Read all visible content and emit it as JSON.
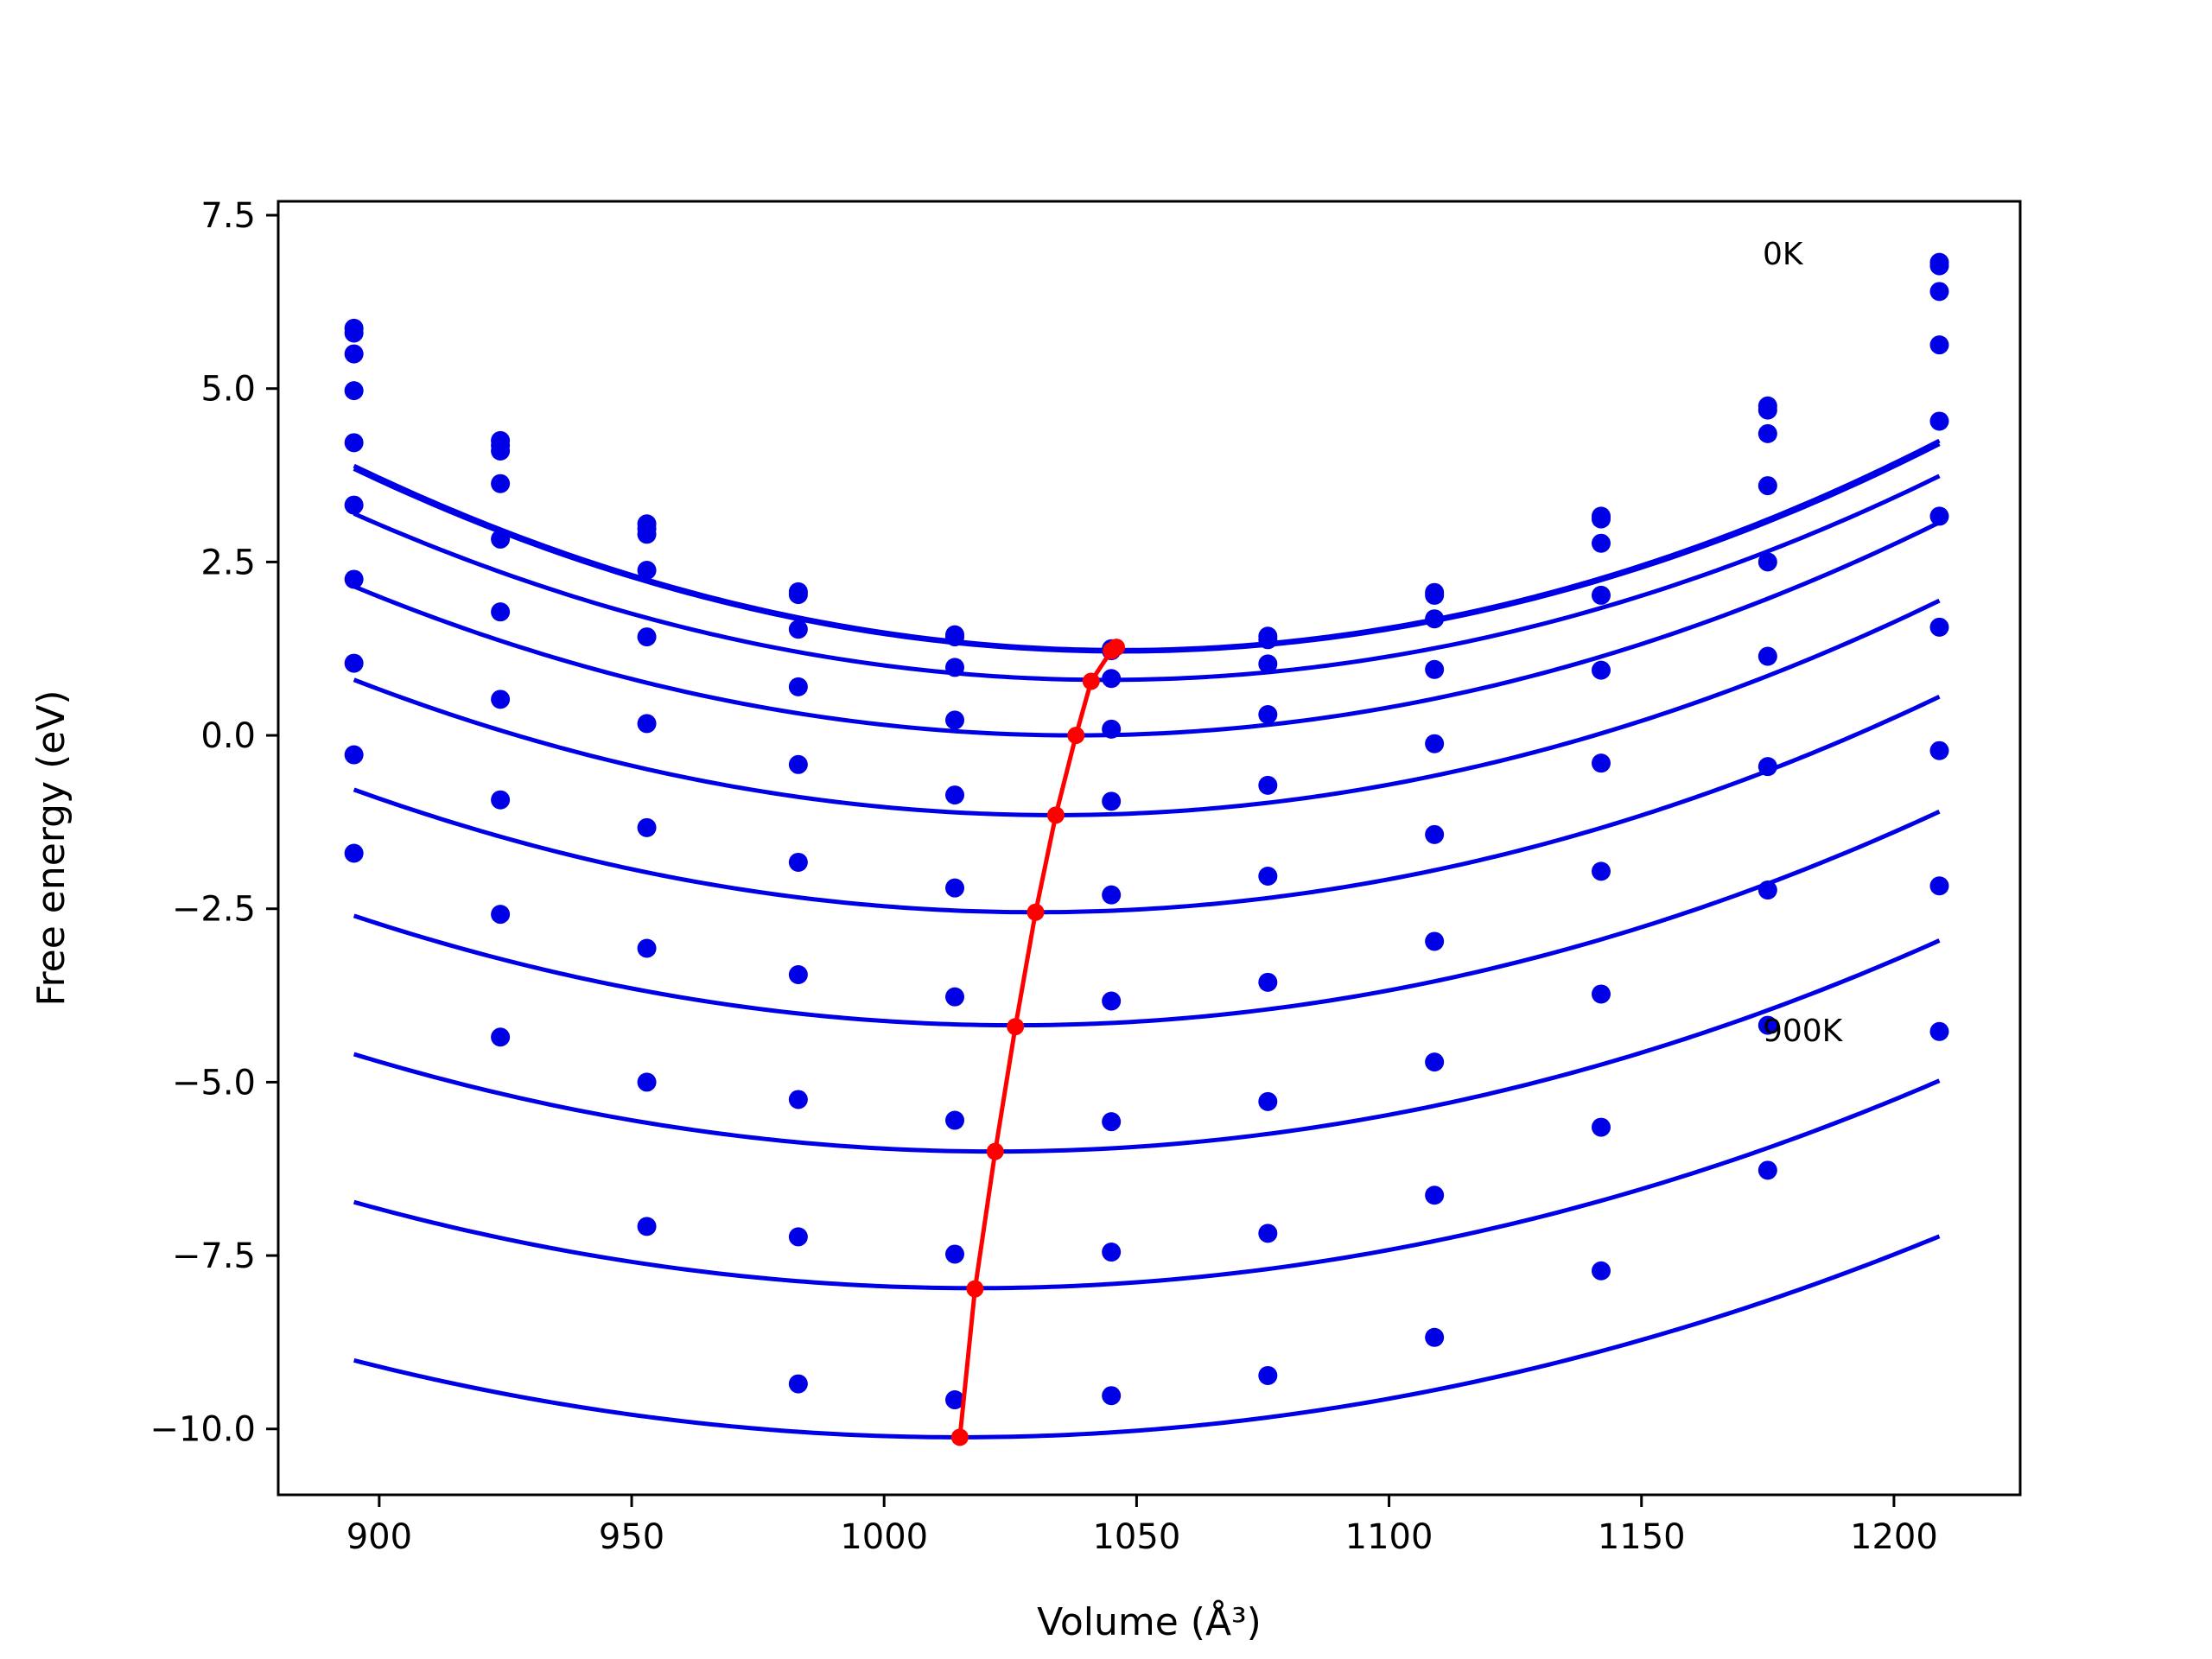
{
  "chart_data": {
    "type": "scatter",
    "xlabel": "Volume (Å³)",
    "ylabel": "Free energy (eV)",
    "xlim": [
      880,
      1225
    ],
    "ylim": [
      -10.95,
      7.7
    ],
    "xticks": [
      {
        "value": 900,
        "label": "900"
      },
      {
        "value": 950,
        "label": "950"
      },
      {
        "value": 1000,
        "label": "1000"
      },
      {
        "value": 1050,
        "label": "1050"
      },
      {
        "value": 1100,
        "label": "1100"
      },
      {
        "value": 1150,
        "label": "1150"
      },
      {
        "value": 1200,
        "label": "1200"
      }
    ],
    "yticks": [
      {
        "value": 7.5,
        "label": "7.5"
      },
      {
        "value": 5.0,
        "label": "5.0"
      },
      {
        "value": 2.5,
        "label": "2.5"
      },
      {
        "value": 0.0,
        "label": "0.0"
      },
      {
        "value": -2.5,
        "label": "−2.5"
      },
      {
        "value": -5.0,
        "label": "−5.0"
      },
      {
        "value": -7.5,
        "label": "−7.5"
      },
      {
        "value": -10.0,
        "label": "−10.0"
      }
    ],
    "grid": false,
    "legend": "none",
    "annotations": [
      {
        "text": "0K",
        "x": 1174,
        "y": 6.95
      },
      {
        "text": "900K",
        "x": 1174,
        "y": -4.25
      }
    ],
    "colors": {
      "points": "#0000e6",
      "fits": "#0000e6",
      "minima": "#ff0000"
    },
    "x": [
      895,
      924,
      953,
      983,
      1014,
      1045,
      1076,
      1109,
      1142,
      1175,
      1209
    ],
    "series": [
      {
        "E0": 1.23,
        "V0": 1047,
        "B": 0.000115,
        "values": [
          5.87,
          4.25,
          3.05,
          2.07,
          1.45,
          1.25,
          1.43,
          2.06,
          3.16,
          4.75,
          6.82
        ]
      },
      {
        "E0": 1.21,
        "V0": 1047,
        "B": 0.000114,
        "values": [
          5.8,
          4.18,
          2.98,
          2.03,
          1.42,
          1.22,
          1.38,
          2.02,
          3.12,
          4.69,
          6.77
        ]
      },
      {
        "E0": 0.8,
        "V0": 1044,
        "B": 0.000108,
        "values": [
          5.5,
          4.1,
          2.9,
          1.53,
          0.98,
          0.82,
          1.03,
          1.68,
          2.77,
          4.35,
          6.4
        ]
      },
      {
        "E0": 0.0,
        "V0": 1038,
        "B": 0.000105,
        "values": [
          4.97,
          3.63,
          2.38,
          0.7,
          0.22,
          0.09,
          0.3,
          0.95,
          2.02,
          3.6,
          5.63
        ]
      },
      {
        "E0": -1.15,
        "V0": 1034,
        "B": 0.000101,
        "values": [
          4.22,
          2.83,
          1.42,
          -0.42,
          -0.86,
          -0.95,
          -0.72,
          -0.12,
          0.94,
          2.5,
          4.53
        ]
      },
      {
        "E0": -2.55,
        "V0": 1030,
        "B": 9.7e-05,
        "values": [
          3.32,
          1.78,
          0.17,
          -1.83,
          -2.2,
          -2.3,
          -2.03,
          -1.43,
          -0.4,
          1.14,
          3.16
        ]
      },
      {
        "E0": -4.18,
        "V0": 1026,
        "B": 9.2e-05,
        "values": [
          2.25,
          0.52,
          -1.33,
          -3.45,
          -3.77,
          -3.83,
          -3.56,
          -2.97,
          -1.96,
          -0.45,
          1.56
        ]
      },
      {
        "E0": -6.0,
        "V0": 1022,
        "B": 8.7e-05,
        "values": [
          1.04,
          -0.93,
          -3.07,
          -5.25,
          -5.55,
          -5.57,
          -5.28,
          -4.71,
          -3.73,
          -2.23,
          -0.22
        ]
      },
      {
        "E0": -7.97,
        "V0": 1018,
        "B": 8.2e-05,
        "values": [
          -0.28,
          -2.58,
          -5.0,
          -7.23,
          -7.48,
          -7.45,
          -7.18,
          -6.63,
          -5.65,
          -4.18,
          -2.17
        ]
      },
      {
        "E0": -10.12,
        "V0": 1015,
        "B": 7.7e-05,
        "values": [
          -1.7,
          -4.35,
          -7.08,
          -9.35,
          -9.58,
          -9.52,
          -9.23,
          -8.68,
          -7.72,
          -6.27,
          -4.27
        ]
      }
    ],
    "minima": {
      "x": [
        1046,
        1045,
        1041,
        1038,
        1034,
        1030,
        1026,
        1022,
        1018,
        1015
      ],
      "y": [
        1.27,
        1.22,
        0.78,
        0.0,
        -1.15,
        -2.55,
        -4.2,
        -6.0,
        -7.98,
        -10.12
      ]
    }
  }
}
